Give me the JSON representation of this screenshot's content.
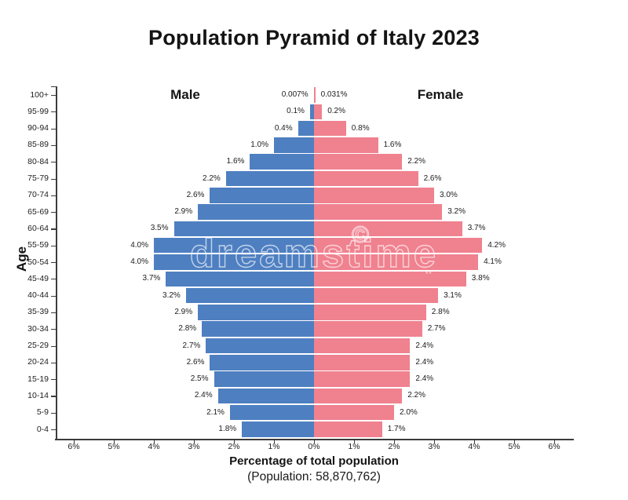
{
  "chart_data": {
    "type": "bar",
    "variant": "population-pyramid",
    "title": "Population Pyramid of Italy 2023",
    "xlabel": "Percentage of total population",
    "xlabel_subtitle": "(Population: 58,870,762)",
    "ylabel": "Age",
    "left_series_label": "Male",
    "right_series_label": "Female",
    "legend_position": "top-inside",
    "grid": false,
    "colors": {
      "male": "#4e7fc1",
      "female": "#f0818f",
      "axis": "#3c3c3c",
      "text": "#1a1a1a"
    },
    "x_axis_percent_range": [
      -6.5,
      6.5
    ],
    "x_tick_values": [
      -6,
      -5,
      -4,
      -3,
      -2,
      -1,
      0,
      1,
      2,
      3,
      4,
      5,
      6
    ],
    "x_tick_labels": [
      "6%",
      "5%",
      "4%",
      "3%",
      "2%",
      "1%",
      "0%",
      "1%",
      "2%",
      "3%",
      "4%",
      "5%",
      "6%"
    ],
    "rows": [
      {
        "age": "100+",
        "male_pct": 0.007,
        "female_pct": 0.031,
        "male_label": "0.007%",
        "female_label": "0.031%"
      },
      {
        "age": "95-99",
        "male_pct": 0.1,
        "female_pct": 0.2,
        "male_label": "0.1%",
        "female_label": "0.2%"
      },
      {
        "age": "90-94",
        "male_pct": 0.4,
        "female_pct": 0.8,
        "male_label": "0.4%",
        "female_label": "0.8%"
      },
      {
        "age": "85-89",
        "male_pct": 1.0,
        "female_pct": 1.6,
        "male_label": "1.0%",
        "female_label": "1.6%"
      },
      {
        "age": "80-84",
        "male_pct": 1.6,
        "female_pct": 2.2,
        "male_label": "1.6%",
        "female_label": "2.2%"
      },
      {
        "age": "75-79",
        "male_pct": 2.2,
        "female_pct": 2.6,
        "male_label": "2.2%",
        "female_label": "2.6%"
      },
      {
        "age": "70-74",
        "male_pct": 2.6,
        "female_pct": 3.0,
        "male_label": "2.6%",
        "female_label": "3.0%"
      },
      {
        "age": "65-69",
        "male_pct": 2.9,
        "female_pct": 3.2,
        "male_label": "2.9%",
        "female_label": "3.2%"
      },
      {
        "age": "60-64",
        "male_pct": 3.5,
        "female_pct": 3.7,
        "male_label": "3.5%",
        "female_label": "3.7%"
      },
      {
        "age": "55-59",
        "male_pct": 4.0,
        "female_pct": 4.2,
        "male_label": "4.0%",
        "female_label": "4.2%"
      },
      {
        "age": "50-54",
        "male_pct": 4.0,
        "female_pct": 4.1,
        "male_label": "4.0%",
        "female_label": "4.1%"
      },
      {
        "age": "45-49",
        "male_pct": 3.7,
        "female_pct": 3.8,
        "male_label": "3.7%",
        "female_label": "3.8%"
      },
      {
        "age": "40-44",
        "male_pct": 3.2,
        "female_pct": 3.1,
        "male_label": "3.2%",
        "female_label": "3.1%"
      },
      {
        "age": "35-39",
        "male_pct": 2.9,
        "female_pct": 2.8,
        "male_label": "2.9%",
        "female_label": "2.8%"
      },
      {
        "age": "30-34",
        "male_pct": 2.8,
        "female_pct": 2.7,
        "male_label": "2.8%",
        "female_label": "2.7%"
      },
      {
        "age": "25-29",
        "male_pct": 2.7,
        "female_pct": 2.4,
        "male_label": "2.7%",
        "female_label": "2.4%"
      },
      {
        "age": "20-24",
        "male_pct": 2.6,
        "female_pct": 2.4,
        "male_label": "2.6%",
        "female_label": "2.4%"
      },
      {
        "age": "15-19",
        "male_pct": 2.5,
        "female_pct": 2.4,
        "male_label": "2.5%",
        "female_label": "2.4%"
      },
      {
        "age": "10-14",
        "male_pct": 2.4,
        "female_pct": 2.2,
        "male_label": "2.4%",
        "female_label": "2.2%"
      },
      {
        "age": "5-9",
        "male_pct": 2.1,
        "female_pct": 2.0,
        "male_label": "2.1%",
        "female_label": "2.0%"
      },
      {
        "age": "0-4",
        "male_pct": 1.8,
        "female_pct": 1.7,
        "male_label": "1.8%",
        "female_label": "1.7%"
      }
    ]
  },
  "watermark": {
    "text": "dreamstime",
    "copyright_symbol": "©",
    "dots": ".."
  }
}
